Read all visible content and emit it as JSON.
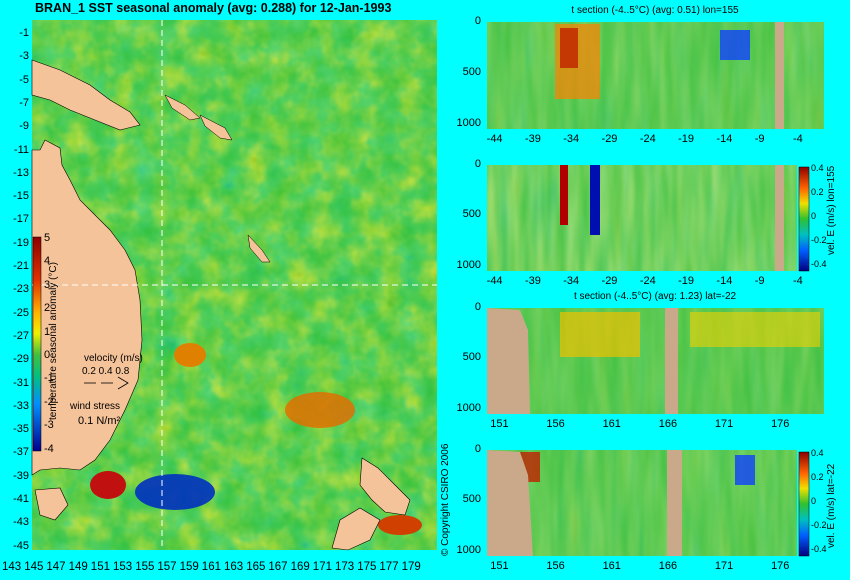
{
  "map": {
    "title": "BRAN_1 SST seasonal anomaly (avg: 0.288) for 12-Jan-1993",
    "lat_ticks": [
      "-1",
      "-3",
      "-5",
      "-7",
      "-9",
      "-11",
      "-13",
      "-15",
      "-17",
      "-19",
      "-21",
      "-23",
      "-25",
      "-27",
      "-29",
      "-31",
      "-33",
      "-35",
      "-37",
      "-39",
      "-41",
      "-43",
      "-45"
    ],
    "lon_ticks": [
      "143",
      "145",
      "147",
      "149",
      "151",
      "153",
      "155",
      "157",
      "159",
      "161",
      "163",
      "165",
      "167",
      "169",
      "171",
      "173",
      "175",
      "177",
      "179"
    ],
    "colorbar_ticks": [
      "5",
      "4",
      "3",
      "2",
      "1",
      "0",
      "-1",
      "-2",
      "-3",
      "-4"
    ],
    "colorbar_label": "temperature seasonal anomaly (°C)",
    "velocity_label": "velocity (m/s)",
    "velocity_ticks": "0.2 0.4 0.8",
    "wind_label": "wind stress",
    "wind_value": "0.1 N/m²",
    "copyright": "© Copyright CSIRO 2006",
    "colors": {
      "land": "#f5c39a",
      "ocean_mid": "#2fbf3a",
      "frame": "#00ffff",
      "section_line": "#ffffff"
    }
  },
  "panels": [
    {
      "id": "p1",
      "title": "t section (-4..5°C) (avg: 0.51) lon=155",
      "x_ticks": [
        "-44",
        "-39",
        "-34",
        "-29",
        "-24",
        "-19",
        "-14",
        "-9",
        "-4"
      ],
      "y_ticks": [
        "0",
        "500",
        "1000"
      ],
      "colorbar": false
    },
    {
      "id": "p2",
      "title": "",
      "x_ticks": [
        "-44",
        "-39",
        "-34",
        "-29",
        "-24",
        "-19",
        "-14",
        "-9",
        "-4"
      ],
      "y_ticks": [
        "0",
        "500",
        "1000"
      ],
      "colorbar": true,
      "colorbar_ticks": [
        "0.4",
        "0.2",
        "0",
        "-0.2",
        "-0.4"
      ],
      "colorbar_label": "vel. E (m/s) lon=155"
    },
    {
      "id": "p3",
      "title": "t section (-4..5°C) (avg: 1.23) lat=-22",
      "x_ticks": [
        "151",
        "156",
        "161",
        "166",
        "171",
        "176"
      ],
      "y_ticks": [
        "0",
        "500",
        "1000"
      ],
      "colorbar": false
    },
    {
      "id": "p4",
      "title": "",
      "x_ticks": [
        "151",
        "156",
        "161",
        "166",
        "171",
        "176"
      ],
      "y_ticks": [
        "0",
        "500",
        "1000"
      ],
      "colorbar": true,
      "colorbar_ticks": [
        "0.4",
        "0.2",
        "0",
        "-0.2",
        "-0.4"
      ],
      "colorbar_label": "vel. E (m/s) lat=-22"
    }
  ],
  "chart_data": [
    {
      "type": "heatmap",
      "title": "BRAN_1 SST seasonal anomaly (avg: 0.288) for 12-Jan-1993",
      "xlabel": "",
      "ylabel": "",
      "xlim": [
        143,
        180
      ],
      "ylim": [
        -45,
        0
      ],
      "colorbar_range": [
        -4,
        5
      ],
      "section_lines": {
        "lon": 155,
        "lat": -22
      }
    },
    {
      "type": "heatmap",
      "title": "t section (-4..5°C) (avg: 0.51) lon=155",
      "xlim": [
        -45,
        -1
      ],
      "ylim": [
        1050,
        0
      ]
    },
    {
      "type": "heatmap",
      "title": "",
      "xlim": [
        -45,
        -1
      ],
      "ylim": [
        1050,
        0
      ],
      "colorbar_range": [
        -0.4,
        0.4
      ]
    },
    {
      "type": "heatmap",
      "title": "t section (-4..5°C) (avg: 1.23) lat=-22",
      "xlim": [
        150,
        180
      ],
      "ylim": [
        1050,
        0
      ]
    },
    {
      "type": "heatmap",
      "title": "",
      "xlim": [
        150,
        180
      ],
      "ylim": [
        1050,
        0
      ],
      "colorbar_range": [
        -0.4,
        0.4
      ]
    }
  ]
}
